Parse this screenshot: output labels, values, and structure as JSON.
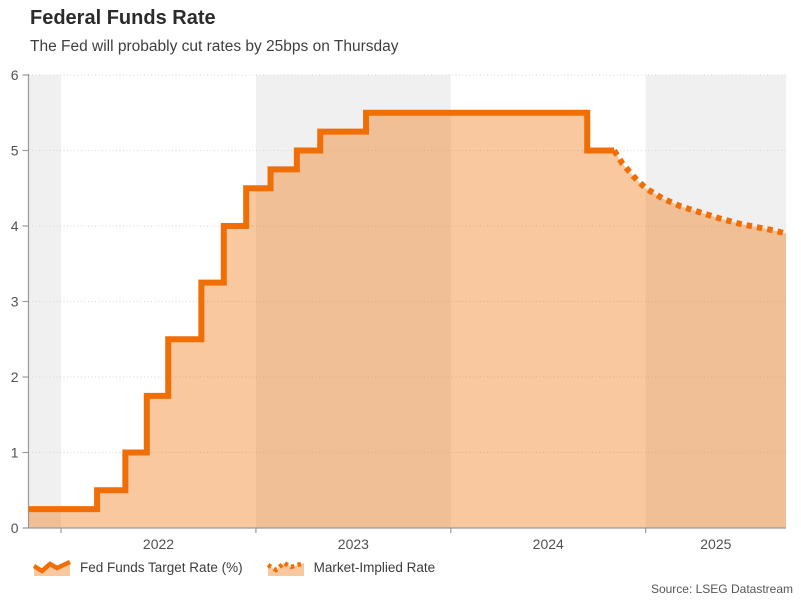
{
  "chart_data": {
    "type": "area",
    "title": "Federal Funds Rate",
    "subtitle": "The Fed will probably cut rates by 25bps on Thursday",
    "source": "Source: LSEG Datastream",
    "ylabel": "",
    "xlabel": "",
    "ylim": [
      0,
      6
    ],
    "y_ticks": [
      0,
      1,
      2,
      3,
      4,
      5,
      6
    ],
    "x_domain": [
      2021.833,
      2025.72
    ],
    "x_year_ticks": [
      2022,
      2023,
      2024,
      2025
    ],
    "x_year_labels": [
      "2022",
      "2023",
      "2024",
      "2025"
    ],
    "shaded_bands": [
      [
        2021.833,
        2022
      ],
      [
        2023,
        2024
      ],
      [
        2025,
        2025.72
      ]
    ],
    "grid": "dotted-horizontal",
    "legend_position": "bottom-left",
    "series": [
      {
        "name": "Fed Funds Target Rate (%)",
        "style": "solid-step",
        "points": [
          [
            2021.833,
            0.25
          ],
          [
            2022.185,
            0.5
          ],
          [
            2022.33,
            1.0
          ],
          [
            2022.44,
            1.75
          ],
          [
            2022.55,
            2.5
          ],
          [
            2022.72,
            3.25
          ],
          [
            2022.835,
            4.0
          ],
          [
            2022.95,
            4.5
          ],
          [
            2023.075,
            4.75
          ],
          [
            2023.21,
            5.0
          ],
          [
            2023.33,
            5.25
          ],
          [
            2023.565,
            5.5
          ],
          [
            2024.7,
            5.0
          ],
          [
            2024.838,
            5.0
          ]
        ]
      },
      {
        "name": "Market-Implied Rate",
        "style": "dotted",
        "points": [
          [
            2024.838,
            5.0
          ],
          [
            2024.88,
            4.83
          ],
          [
            2024.94,
            4.65
          ],
          [
            2025.0,
            4.5
          ],
          [
            2025.09,
            4.36
          ],
          [
            2025.18,
            4.26
          ],
          [
            2025.28,
            4.18
          ],
          [
            2025.38,
            4.1
          ],
          [
            2025.48,
            4.03
          ],
          [
            2025.58,
            3.98
          ],
          [
            2025.66,
            3.94
          ],
          [
            2025.72,
            3.9
          ]
        ]
      }
    ],
    "colors": {
      "line": "#ef6e06",
      "fill": "rgba(238,111,0,0.38)",
      "band": "#f0f0f0",
      "grid": "#dcdcdc",
      "axis": "#999999",
      "tick_text": "#515151"
    }
  }
}
